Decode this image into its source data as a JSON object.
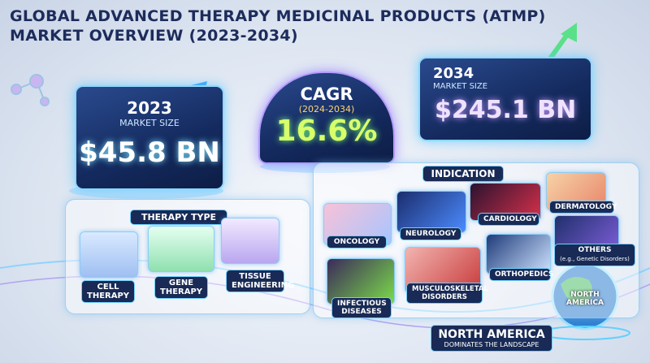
{
  "header": {
    "title_lines": [
      "GLOBAL ADVANCED THERAPY MEDICINAL PRODUCTS (ATMP)",
      "MARKET OVERVIEW (2023-2034)"
    ]
  },
  "cards": [
    {
      "year": "2023",
      "caption": "MARKET SIZE",
      "value": "$45.8 BN"
    },
    {
      "label": "CAGR",
      "period": "(2024-2034)",
      "value": "16.6%"
    },
    {
      "year": "2034",
      "caption": "MARKET SIZE",
      "value": "$245.1 BN"
    }
  ],
  "therapy_type": {
    "heading": "THERAPY TYPE",
    "items": [
      "CELL THERAPY",
      "GENE THERAPY",
      "TISSUE ENGINEERING"
    ]
  },
  "indication": {
    "heading": "INDICATION",
    "items": [
      {
        "label": "ONCOLOGY"
      },
      {
        "label": "NEUROLOGY"
      },
      {
        "label": "CARDIOLOGY"
      },
      {
        "label": "DERMATOLOGY"
      },
      {
        "label": "INFECTIOUS DISEASES"
      },
      {
        "label": "MUSCULOSKELETAL DISORDERS"
      },
      {
        "label": "ORTHOPEDICS"
      },
      {
        "label": "OTHERS",
        "note": "(e.g., Genetic Disorders)"
      }
    ]
  },
  "region": {
    "globe_label": "NORTH AMERICA",
    "title": "NORTH AMERICA",
    "subtitle": "DOMINATES THE LANDSCAPE"
  }
}
